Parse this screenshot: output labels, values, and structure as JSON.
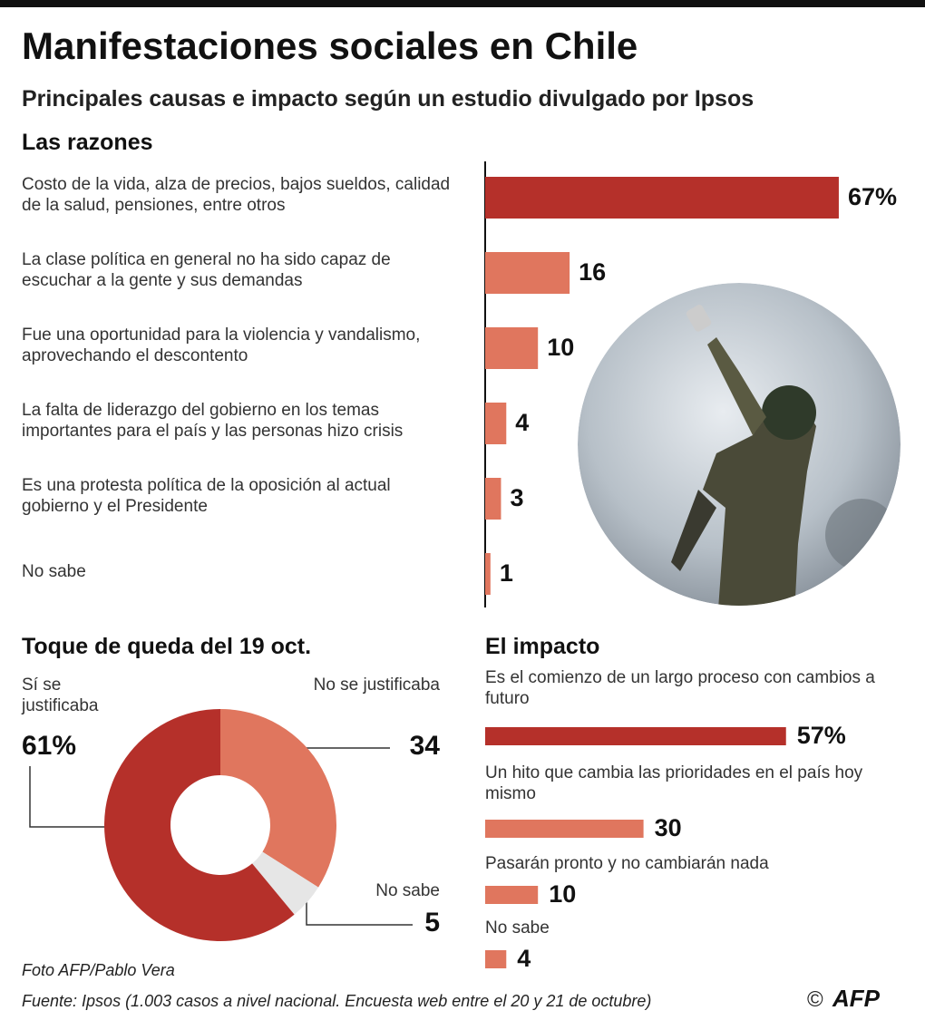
{
  "header": {
    "title": "Manifestaciones sociales en Chile",
    "subtitle": "Principales causas e impacto según un estudio divulgado por Ipsos"
  },
  "chart_data": [
    {
      "type": "bar",
      "title": "Las razones",
      "categories": [
        "Costo de la vida, alza de precios, bajos sueldos, calidad de la salud, pensiones, entre otros",
        "La clase política en general no ha sido capaz de escuchar a la gente y sus demandas",
        "Fue una oportunidad para la violencia y vandalismo, aprovechando el descontento",
        "La falta de liderazgo del gobierno en los temas importantes para el país y las personas hizo crisis",
        "Es una protesta política de la oposición al actual gobierno y el Presidente",
        "No sabe"
      ],
      "values": [
        67,
        16,
        10,
        4,
        3,
        1
      ],
      "value_labels": [
        "67%",
        "16",
        "10",
        "4",
        "3",
        "1"
      ],
      "colors": [
        "#b5302a",
        "#e0765e",
        "#e0765e",
        "#e0765e",
        "#e0765e",
        "#e0765e"
      ]
    },
    {
      "type": "donut",
      "title": "Toque de queda del 19 oct.",
      "categories": [
        "No se justificaba",
        "No sabe",
        "Sí se justificaba"
      ],
      "values": [
        34,
        5,
        61
      ],
      "value_labels": [
        "34",
        "5",
        "61%"
      ],
      "colors": [
        "#e0765e",
        "#e6e6e6",
        "#b5302a"
      ]
    },
    {
      "type": "bar",
      "title": "El impacto",
      "categories": [
        "Es el comienzo de un largo proceso con cambios a futuro",
        "Un hito que cambia las prioridades en el país hoy mismo",
        "Pasarán pronto y no cambiarán nada",
        "No sabe"
      ],
      "values": [
        57,
        30,
        10,
        4
      ],
      "value_labels": [
        "57%",
        "30",
        "10",
        "4"
      ],
      "colors": [
        "#b5302a",
        "#e0765e",
        "#e0765e",
        "#e0765e"
      ]
    }
  ],
  "footer": {
    "photo_credit": "Foto AFP/Pablo Vera",
    "source": "Fuente: Ipsos (1.003 casos a nivel nacional. Encuesta web entre el 20 y 21 de octubre)",
    "copyright": "©",
    "logo": "AFP"
  }
}
